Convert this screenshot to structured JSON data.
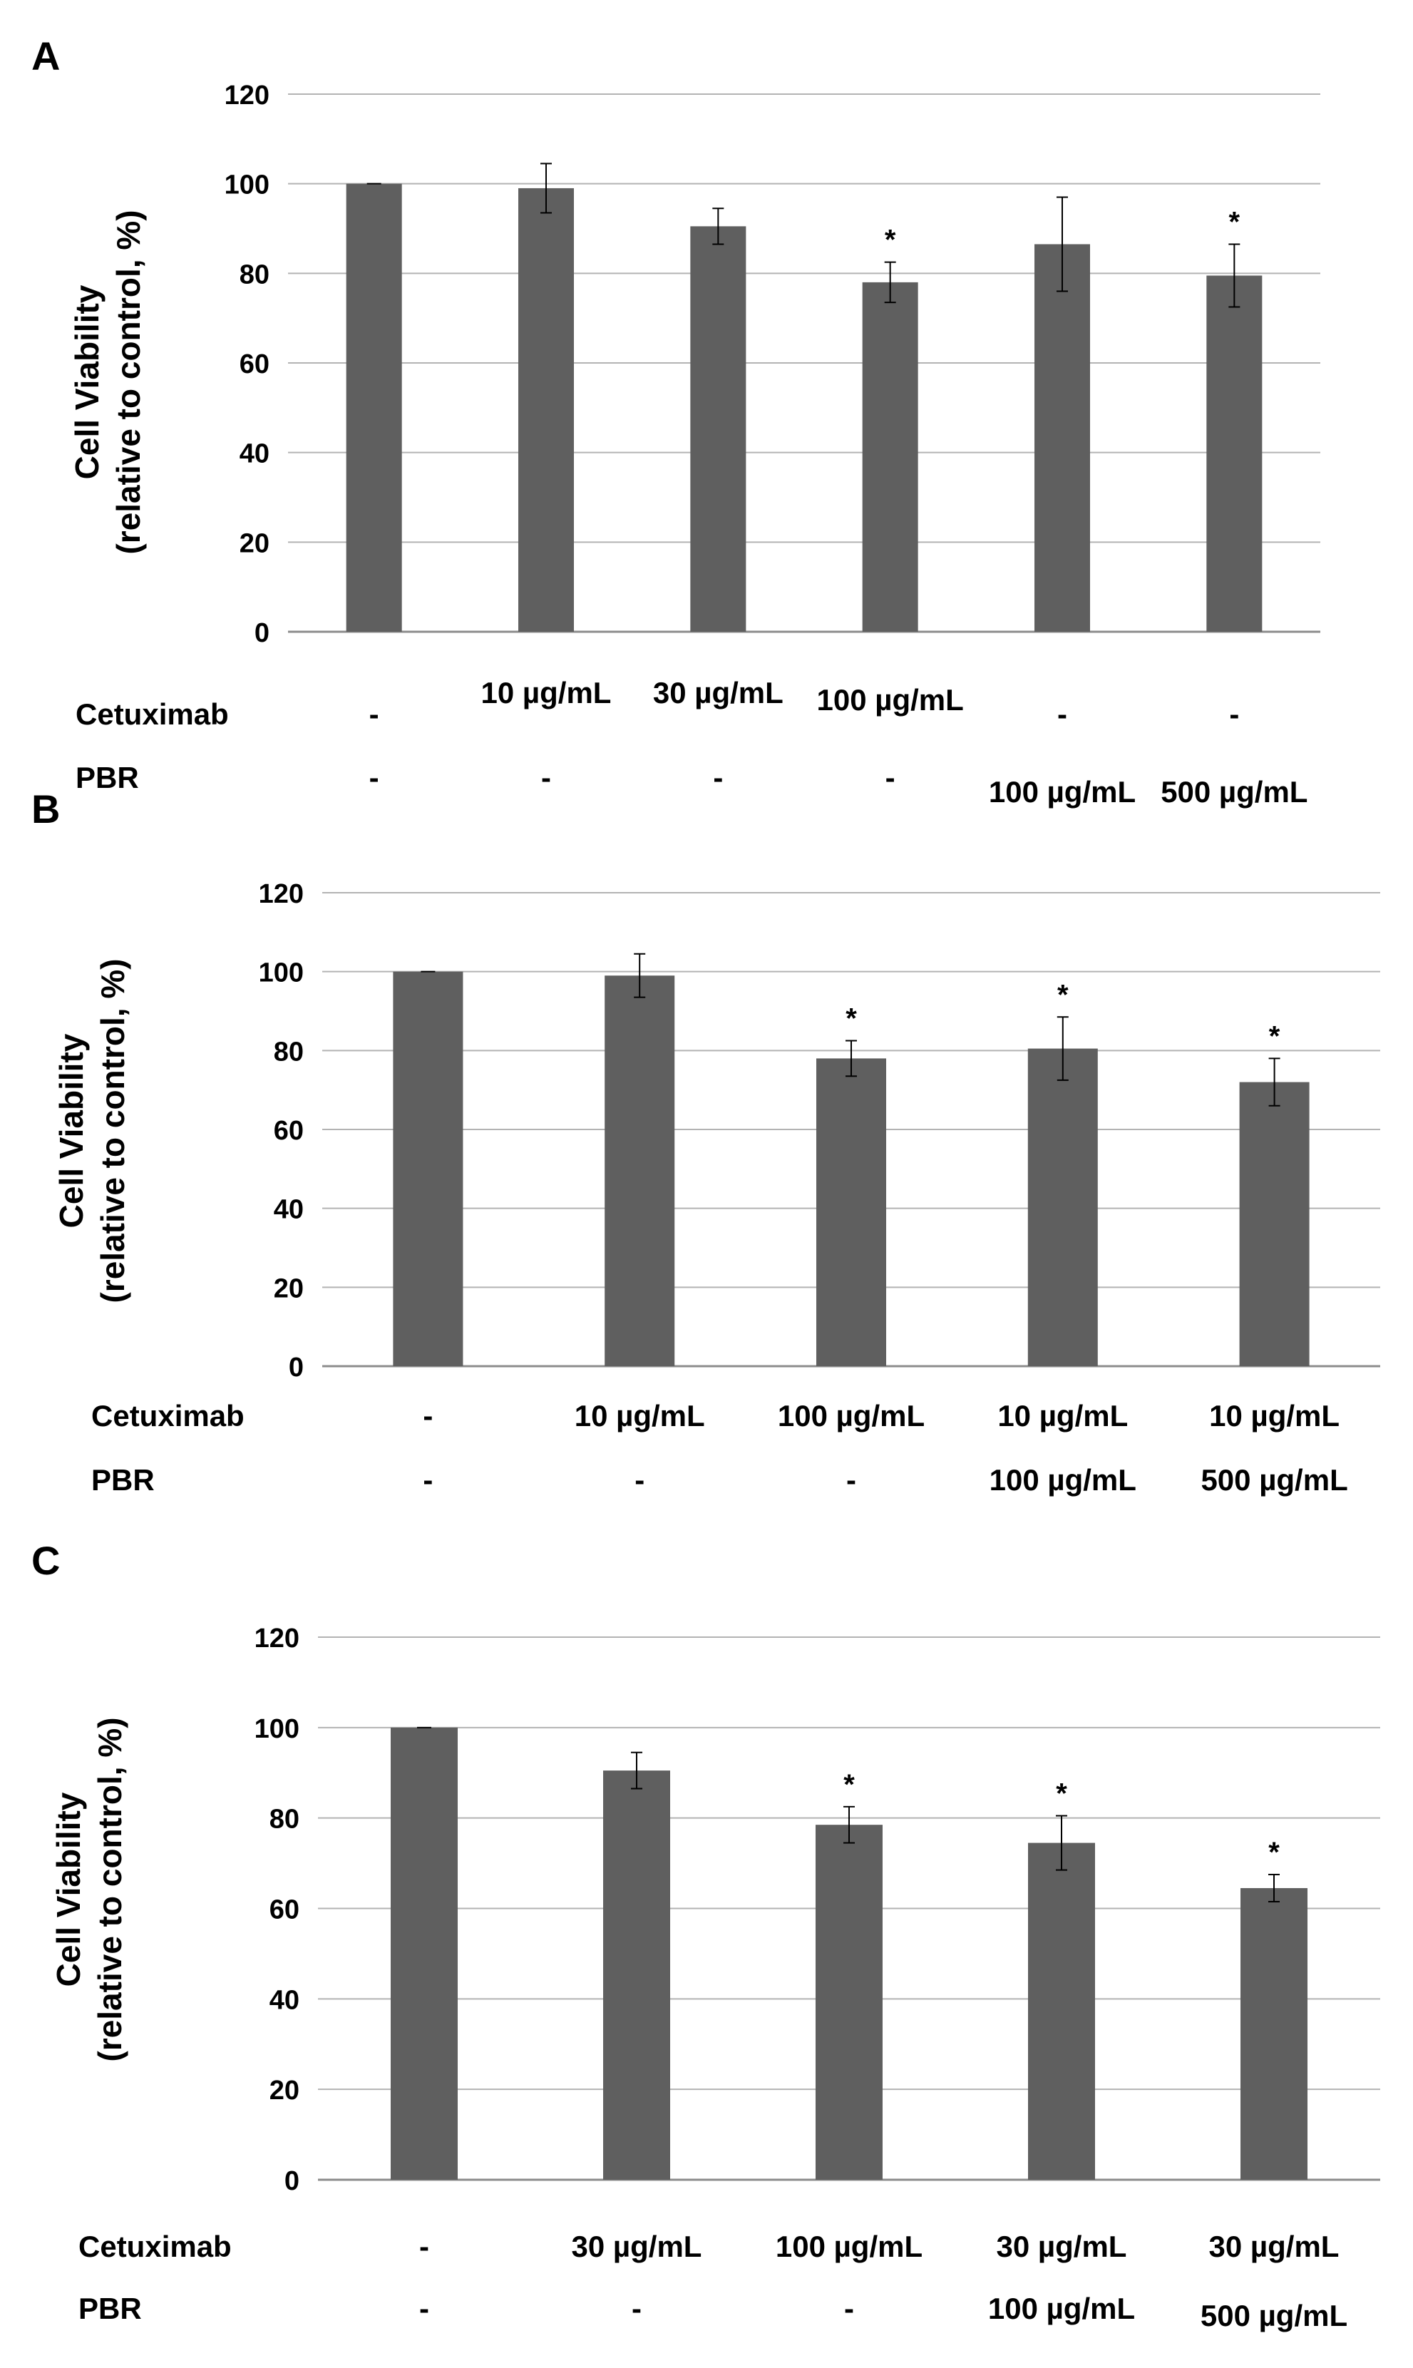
{
  "colors": {
    "bar": "#5f5f5f",
    "grid": "#b3b3b3",
    "axis": "#8c8c8c",
    "text": "#000000",
    "background": "#ffffff"
  },
  "chart_data": [
    {
      "type": "bar",
      "panel_label": "A",
      "ylabel_line1": "Cell Viability",
      "ylabel_line2": "(relative to control, %)",
      "ylim": [
        0,
        120
      ],
      "yticks": [
        0,
        20,
        40,
        60,
        80,
        100,
        120
      ],
      "grid": true,
      "values": [
        100,
        99,
        90.5,
        78,
        86.5,
        79.5
      ],
      "errors": [
        0,
        5.5,
        4,
        4.5,
        10.5,
        7
      ],
      "significant": [
        false,
        false,
        false,
        true,
        false,
        true
      ],
      "significance_marker": "*",
      "rows": [
        {
          "label": "Cetuximab",
          "cells": [
            "-",
            "10 µg/mL",
            "30 µg/mL",
            "100 µg/mL",
            "-",
            "-"
          ]
        },
        {
          "label": "PBR",
          "cells": [
            "-",
            "-",
            "-",
            "-",
            "100 µg/mL",
            "500 µg/mL"
          ]
        }
      ]
    },
    {
      "type": "bar",
      "panel_label": "B",
      "ylabel_line1": "Cell Viability",
      "ylabel_line2": "(relative to control, %)",
      "ylim": [
        0,
        120
      ],
      "yticks": [
        0,
        20,
        40,
        60,
        80,
        100,
        120
      ],
      "grid": true,
      "values": [
        100,
        99,
        78,
        80.5,
        72
      ],
      "errors": [
        0,
        5.5,
        4.5,
        8,
        6
      ],
      "significant": [
        false,
        false,
        true,
        true,
        true
      ],
      "significance_marker": "*",
      "rows": [
        {
          "label": "Cetuximab",
          "cells": [
            "-",
            "10 µg/mL",
            "100 µg/mL",
            "10 µg/mL",
            "10 µg/mL"
          ]
        },
        {
          "label": "PBR",
          "cells": [
            "-",
            "-",
            "-",
            "100 µg/mL",
            "500 µg/mL"
          ]
        }
      ]
    },
    {
      "type": "bar",
      "panel_label": "C",
      "ylabel_line1": "Cell Viability",
      "ylabel_line2": "(relative to control, %)",
      "ylim": [
        0,
        120
      ],
      "yticks": [
        0,
        20,
        40,
        60,
        80,
        100,
        120
      ],
      "grid": true,
      "values": [
        100,
        90.5,
        78.5,
        74.5,
        64.5
      ],
      "errors": [
        0,
        4,
        4,
        6,
        3
      ],
      "significant": [
        false,
        false,
        true,
        true,
        true
      ],
      "significance_marker": "*",
      "rows": [
        {
          "label": "Cetuximab",
          "cells": [
            "-",
            "30 µg/mL",
            "100 µg/mL",
            "30 µg/mL",
            "30 µg/mL"
          ]
        },
        {
          "label": "PBR",
          "cells": [
            "-",
            "-",
            "-",
            "100 µg/mL",
            "500 µg/mL"
          ]
        }
      ]
    }
  ]
}
